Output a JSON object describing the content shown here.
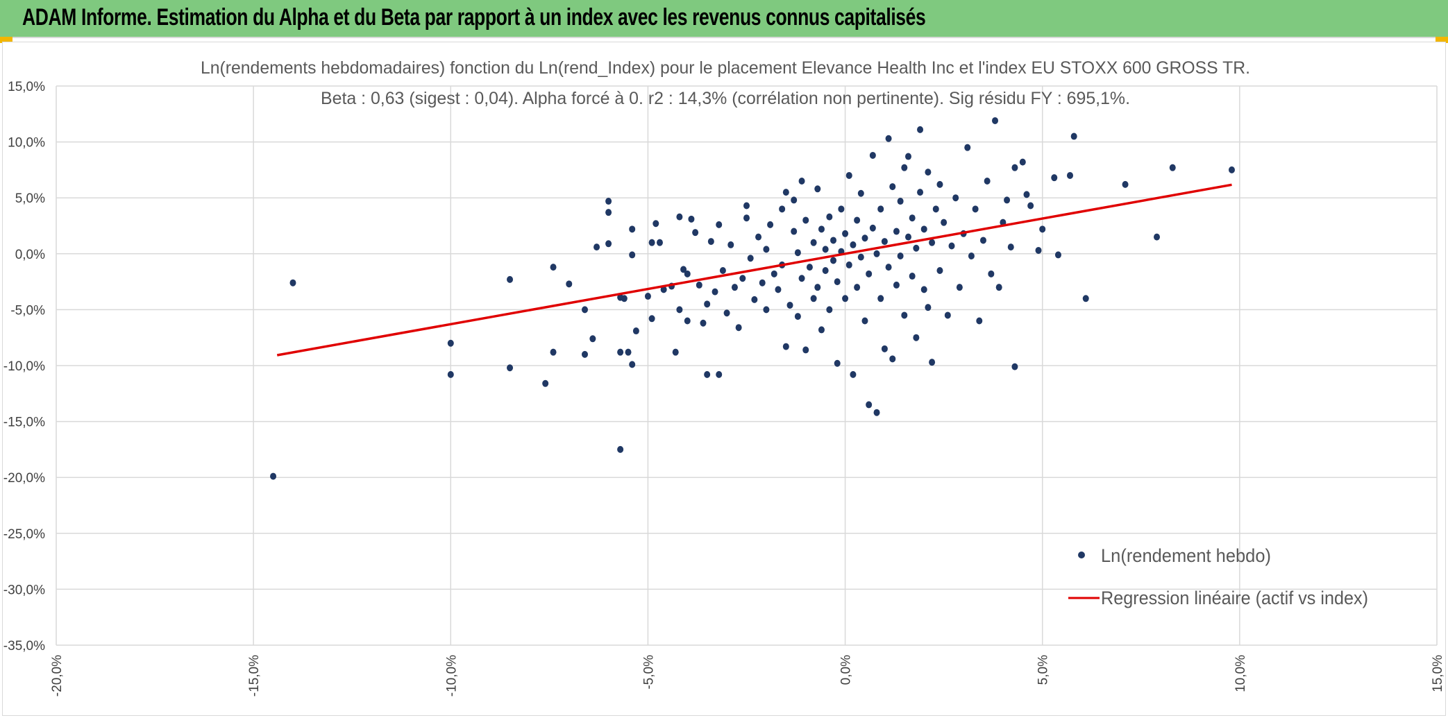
{
  "header": {
    "title": "ADAM Informe. Estimation du Alpha et du Beta par rapport à un index avec les revenus connus capitalisés"
  },
  "colors": {
    "header_bg": "#7fc97f",
    "accent_corner": "#f2b600",
    "points": "#203864",
    "regression": "#e00000",
    "grid": "#d9d9d9"
  },
  "chart_data": {
    "type": "scatter",
    "title_line1": "Ln(rendements hebdomadaires) fonction du Ln(rend_Index) pour le placement Elevance Health Inc et l'index EU STOXX 600 GROSS TR.",
    "title_line2": "Beta : 0,63 (sigest : 0,04). Alpha forcé à 0. r2 : 14,3% (corrélation non pertinente). Sig résidu FY : 695,1%.",
    "xlim": [
      -0.2,
      0.15
    ],
    "ylim": [
      -0.35,
      0.15
    ],
    "x_ticks": [
      -0.2,
      -0.15,
      -0.1,
      -0.05,
      0.0,
      0.05,
      0.1,
      0.15
    ],
    "y_ticks": [
      0.15,
      0.1,
      0.05,
      0.0,
      -0.05,
      -0.1,
      -0.15,
      -0.2,
      -0.25,
      -0.3,
      -0.35
    ],
    "x_tick_labels": [
      "-20,0%",
      "-15,0%",
      "-10,0%",
      "-5,0%",
      "0,0%",
      "5,0%",
      "10,0%",
      "15,0%"
    ],
    "y_tick_labels": [
      "15,0%",
      "10,0%",
      "5,0%",
      "0,0%",
      "-5,0%",
      "-10,0%",
      "-15,0%",
      "-20,0%",
      "-25,0%",
      "-30,0%",
      "-35,0%"
    ],
    "grid": true,
    "legend_position": "bottom-right",
    "series": [
      {
        "name": "Ln(rendement hebdo)",
        "kind": "scatter",
        "points": [
          [
            -0.145,
            -0.199
          ],
          [
            -0.14,
            -0.026
          ],
          [
            -0.1,
            -0.108
          ],
          [
            -0.1,
            -0.08
          ],
          [
            -0.085,
            -0.102
          ],
          [
            -0.085,
            -0.023
          ],
          [
            -0.076,
            -0.116
          ],
          [
            -0.074,
            -0.088
          ],
          [
            -0.074,
            -0.012
          ],
          [
            -0.07,
            -0.027
          ],
          [
            -0.066,
            -0.09
          ],
          [
            -0.066,
            -0.05
          ],
          [
            -0.064,
            -0.076
          ],
          [
            -0.063,
            0.006
          ],
          [
            -0.06,
            0.047
          ],
          [
            -0.06,
            0.037
          ],
          [
            -0.06,
            0.009
          ],
          [
            -0.057,
            -0.039
          ],
          [
            -0.057,
            -0.088
          ],
          [
            -0.056,
            -0.04
          ],
          [
            -0.057,
            -0.175
          ],
          [
            -0.055,
            -0.088
          ],
          [
            -0.054,
            -0.099
          ],
          [
            -0.054,
            0.022
          ],
          [
            -0.054,
            -0.001
          ],
          [
            -0.053,
            -0.069
          ],
          [
            -0.05,
            -0.038
          ],
          [
            -0.049,
            -0.058
          ],
          [
            -0.049,
            0.01
          ],
          [
            -0.048,
            0.027
          ],
          [
            -0.047,
            0.01
          ],
          [
            -0.046,
            -0.032
          ],
          [
            -0.044,
            -0.029
          ],
          [
            -0.043,
            -0.088
          ],
          [
            -0.042,
            -0.05
          ],
          [
            -0.042,
            0.033
          ],
          [
            -0.041,
            -0.014
          ],
          [
            -0.04,
            -0.06
          ],
          [
            -0.04,
            -0.018
          ],
          [
            -0.039,
            0.031
          ],
          [
            -0.038,
            0.019
          ],
          [
            -0.037,
            -0.028
          ],
          [
            -0.036,
            -0.062
          ],
          [
            -0.035,
            -0.108
          ],
          [
            -0.035,
            -0.045
          ],
          [
            -0.034,
            0.011
          ],
          [
            -0.033,
            -0.034
          ],
          [
            -0.032,
            -0.108
          ],
          [
            -0.032,
            0.026
          ],
          [
            -0.031,
            -0.015
          ],
          [
            -0.03,
            -0.053
          ],
          [
            -0.029,
            0.008
          ],
          [
            -0.028,
            -0.03
          ],
          [
            -0.027,
            -0.066
          ],
          [
            -0.026,
            -0.022
          ],
          [
            -0.025,
            0.032
          ],
          [
            -0.025,
            0.043
          ],
          [
            -0.024,
            -0.004
          ],
          [
            -0.023,
            -0.041
          ],
          [
            -0.022,
            0.015
          ],
          [
            -0.021,
            -0.026
          ],
          [
            -0.02,
            -0.05
          ],
          [
            -0.02,
            0.004
          ],
          [
            -0.019,
            0.026
          ],
          [
            -0.018,
            -0.018
          ],
          [
            -0.017,
            -0.032
          ],
          [
            -0.016,
            0.04
          ],
          [
            -0.016,
            -0.01
          ],
          [
            -0.015,
            0.055
          ],
          [
            -0.015,
            -0.083
          ],
          [
            -0.014,
            -0.046
          ],
          [
            -0.013,
            0.02
          ],
          [
            -0.013,
            0.048
          ],
          [
            -0.012,
            -0.056
          ],
          [
            -0.012,
            0.001
          ],
          [
            -0.011,
            -0.022
          ],
          [
            -0.011,
            0.065
          ],
          [
            -0.01,
            -0.086
          ],
          [
            -0.01,
            0.03
          ],
          [
            -0.009,
            -0.012
          ],
          [
            -0.008,
            0.01
          ],
          [
            -0.008,
            -0.04
          ],
          [
            -0.007,
            0.058
          ],
          [
            -0.007,
            -0.03
          ],
          [
            -0.006,
            0.022
          ],
          [
            -0.006,
            -0.068
          ],
          [
            -0.005,
            0.004
          ],
          [
            -0.005,
            -0.015
          ],
          [
            -0.004,
            0.033
          ],
          [
            -0.004,
            -0.05
          ],
          [
            -0.003,
            -0.006
          ],
          [
            -0.003,
            0.012
          ],
          [
            -0.002,
            -0.098
          ],
          [
            -0.002,
            -0.025
          ],
          [
            -0.001,
            0.04
          ],
          [
            -0.001,
            0.002
          ],
          [
            0.0,
            -0.04
          ],
          [
            0.0,
            0.018
          ],
          [
            0.001,
            -0.01
          ],
          [
            0.001,
            0.07
          ],
          [
            0.002,
            -0.108
          ],
          [
            0.002,
            0.008
          ],
          [
            0.003,
            -0.03
          ],
          [
            0.003,
            0.03
          ],
          [
            0.004,
            -0.003
          ],
          [
            0.004,
            0.054
          ],
          [
            0.005,
            -0.06
          ],
          [
            0.005,
            0.014
          ],
          [
            0.006,
            -0.135
          ],
          [
            0.006,
            -0.018
          ],
          [
            0.007,
            0.023
          ],
          [
            0.007,
            0.088
          ],
          [
            0.008,
            -0.142
          ],
          [
            0.008,
            0.0
          ],
          [
            0.009,
            -0.04
          ],
          [
            0.009,
            0.04
          ],
          [
            0.01,
            0.011
          ],
          [
            0.01,
            -0.085
          ],
          [
            0.011,
            0.103
          ],
          [
            0.011,
            -0.012
          ],
          [
            0.012,
            0.06
          ],
          [
            0.012,
            -0.094
          ],
          [
            0.013,
            0.02
          ],
          [
            0.013,
            -0.028
          ],
          [
            0.014,
            0.047
          ],
          [
            0.014,
            -0.002
          ],
          [
            0.015,
            0.077
          ],
          [
            0.015,
            -0.055
          ],
          [
            0.016,
            0.015
          ],
          [
            0.016,
            0.087
          ],
          [
            0.017,
            -0.02
          ],
          [
            0.017,
            0.032
          ],
          [
            0.018,
            -0.075
          ],
          [
            0.018,
            0.005
          ],
          [
            0.019,
            0.111
          ],
          [
            0.019,
            0.055
          ],
          [
            0.02,
            -0.032
          ],
          [
            0.02,
            0.022
          ],
          [
            0.021,
            0.073
          ],
          [
            0.021,
            -0.048
          ],
          [
            0.022,
            0.01
          ],
          [
            0.022,
            -0.097
          ],
          [
            0.023,
            0.04
          ],
          [
            0.024,
            -0.015
          ],
          [
            0.024,
            0.062
          ],
          [
            0.025,
            0.028
          ],
          [
            0.026,
            -0.055
          ],
          [
            0.027,
            0.007
          ],
          [
            0.028,
            0.05
          ],
          [
            0.029,
            -0.03
          ],
          [
            0.03,
            0.018
          ],
          [
            0.031,
            0.095
          ],
          [
            0.032,
            -0.002
          ],
          [
            0.033,
            0.04
          ],
          [
            0.034,
            -0.06
          ],
          [
            0.035,
            0.012
          ],
          [
            0.036,
            0.065
          ],
          [
            0.037,
            -0.018
          ],
          [
            0.038,
            0.119
          ],
          [
            0.039,
            -0.03
          ],
          [
            0.04,
            0.028
          ],
          [
            0.041,
            0.048
          ],
          [
            0.042,
            0.006
          ],
          [
            0.043,
            -0.101
          ],
          [
            0.043,
            0.077
          ],
          [
            0.045,
            0.082
          ],
          [
            0.046,
            0.053
          ],
          [
            0.047,
            0.043
          ],
          [
            0.049,
            0.003
          ],
          [
            0.05,
            0.022
          ],
          [
            0.053,
            0.068
          ],
          [
            0.054,
            -0.001
          ],
          [
            0.057,
            0.07
          ],
          [
            0.058,
            0.105
          ],
          [
            0.061,
            -0.04
          ],
          [
            0.071,
            0.062
          ],
          [
            0.079,
            0.015
          ],
          [
            0.083,
            0.077
          ],
          [
            0.098,
            0.075
          ]
        ]
      },
      {
        "name": "Regression linéaire (actif vs index)",
        "kind": "line",
        "points": [
          [
            -0.144,
            -0.0907
          ],
          [
            0.098,
            0.0617
          ]
        ]
      }
    ]
  }
}
